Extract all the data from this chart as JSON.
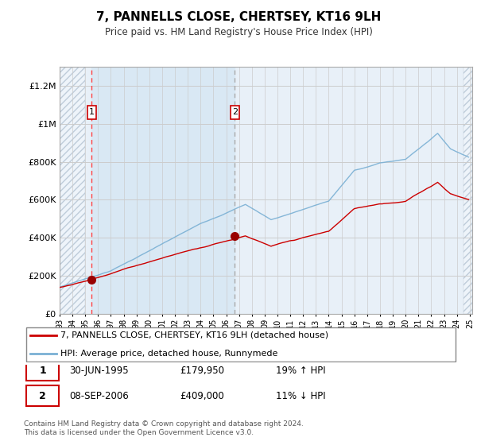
{
  "title": "7, PANNELLS CLOSE, CHERTSEY, KT16 9LH",
  "subtitle": "Price paid vs. HM Land Registry's House Price Index (HPI)",
  "ylim": [
    0,
    1300000
  ],
  "yticks": [
    0,
    200000,
    400000,
    600000,
    800000,
    1000000,
    1200000
  ],
  "ytick_labels": [
    "£0",
    "£200K",
    "£400K",
    "£600K",
    "£800K",
    "£1M",
    "£1.2M"
  ],
  "sale1_date_num": 1995.5,
  "sale1_price": 179950,
  "sale2_date_num": 2006.67,
  "sale2_price": 409000,
  "line1_label": "7, PANNELLS CLOSE, CHERTSEY, KT16 9LH (detached house)",
  "line2_label": "HPI: Average price, detached house, Runnymede",
  "footer": "Contains HM Land Registry data © Crown copyright and database right 2024.\nThis data is licensed under the Open Government Licence v3.0.",
  "hpi_line_color": "#7ab0d4",
  "price_line_color": "#cc0000",
  "sale_vline_color": "#ff4444",
  "marker_color": "#990000",
  "box_edge_color": "#cc0000",
  "bg_color": "#e8f0f8",
  "hatch_color": "#c8d8e8",
  "shaded_bg_color": "#d8e8f4",
  "grid_color": "#cccccc"
}
